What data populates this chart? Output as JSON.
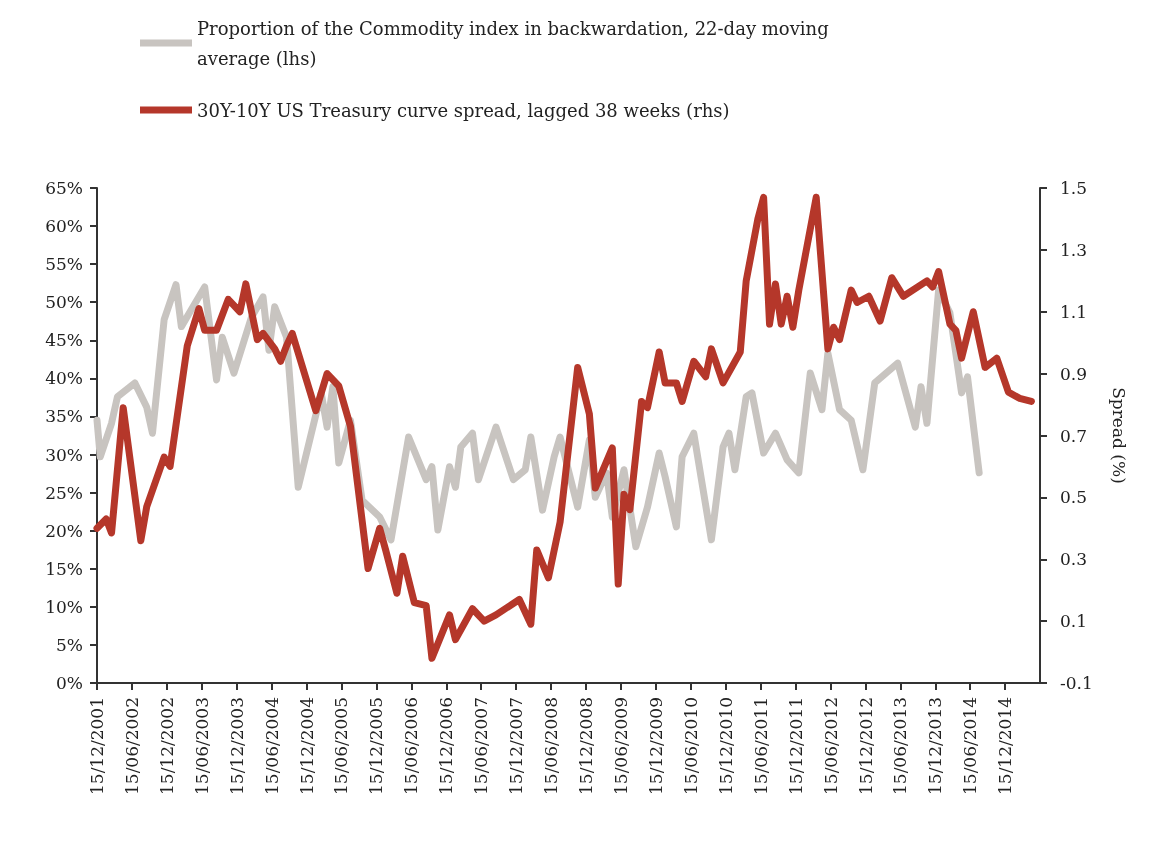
{
  "chart_data": {
    "type": "line",
    "y2label": "Spread (%)",
    "legend": "top",
    "grid": false,
    "marker": "none",
    "line_style": "solid",
    "xlim": [
      "2001-12-15",
      "2015-06-15"
    ],
    "xticks": [
      {
        "value": "2001-12-15",
        "label": "15/12/2001"
      },
      {
        "value": "2002-06-15",
        "label": "15/06/2002"
      },
      {
        "value": "2002-12-15",
        "label": "15/12/2002"
      },
      {
        "value": "2003-06-15",
        "label": "15/06/2003"
      },
      {
        "value": "2003-12-15",
        "label": "15/12/2003"
      },
      {
        "value": "2004-06-15",
        "label": "15/06/2004"
      },
      {
        "value": "2004-12-15",
        "label": "15/12/2004"
      },
      {
        "value": "2005-06-15",
        "label": "15/06/2005"
      },
      {
        "value": "2005-12-15",
        "label": "15/12/2005"
      },
      {
        "value": "2006-06-15",
        "label": "15/06/2006"
      },
      {
        "value": "2006-12-15",
        "label": "15/12/2006"
      },
      {
        "value": "2007-06-15",
        "label": "15/06/2007"
      },
      {
        "value": "2007-12-15",
        "label": "15/12/2007"
      },
      {
        "value": "2008-06-15",
        "label": "15/06/2008"
      },
      {
        "value": "2008-12-15",
        "label": "15/12/2008"
      },
      {
        "value": "2009-06-15",
        "label": "15/06/2009"
      },
      {
        "value": "2009-12-15",
        "label": "15/12/2009"
      },
      {
        "value": "2010-06-15",
        "label": "15/06/2010"
      },
      {
        "value": "2010-12-15",
        "label": "15/12/2010"
      },
      {
        "value": "2011-06-15",
        "label": "15/06/2011"
      },
      {
        "value": "2011-12-15",
        "label": "15/12/2011"
      },
      {
        "value": "2012-06-15",
        "label": "15/06/2012"
      },
      {
        "value": "2012-12-15",
        "label": "15/12/2012"
      },
      {
        "value": "2013-06-15",
        "label": "15/06/2013"
      },
      {
        "value": "2013-12-15",
        "label": "15/12/2013"
      },
      {
        "value": "2014-06-15",
        "label": "15/06/2014"
      },
      {
        "value": "2014-12-15",
        "label": "15/12/2014"
      }
    ],
    "ylim": [
      0,
      65
    ],
    "yticks": [
      {
        "value": 0,
        "label": "0%"
      },
      {
        "value": 5,
        "label": "5%"
      },
      {
        "value": 10,
        "label": "10%"
      },
      {
        "value": 15,
        "label": "15%"
      },
      {
        "value": 20,
        "label": "20%"
      },
      {
        "value": 25,
        "label": "25%"
      },
      {
        "value": 30,
        "label": "30%"
      },
      {
        "value": 35,
        "label": "35%"
      },
      {
        "value": 40,
        "label": "40%"
      },
      {
        "value": 45,
        "label": "45%"
      },
      {
        "value": 50,
        "label": "50%"
      },
      {
        "value": 55,
        "label": "55%"
      },
      {
        "value": 60,
        "label": "60%"
      },
      {
        "value": 65,
        "label": "65%"
      }
    ],
    "y2lim": [
      -0.1,
      1.5
    ],
    "y2ticks": [
      -0.1,
      0.1,
      0.3,
      0.5,
      0.7,
      0.9,
      1.1,
      1.3,
      1.5
    ],
    "series": [
      {
        "name": "Proportion of the Commodity index in backwardation, 22-day moving average (lhs)",
        "color": "#c8c4c0",
        "x": [
          "2001-12-15",
          "2002-01",
          "2002-03",
          "2002-04",
          "2002-07",
          "2002-09",
          "2002-10",
          "2002-12",
          "2003-02",
          "2003-03",
          "2003-05",
          "2003-07",
          "2003-09",
          "2003-10",
          "2003-12",
          "2004-03",
          "2004-05",
          "2004-06",
          "2004-07",
          "2004-09",
          "2004-11",
          "2005-03",
          "2005-04",
          "2005-05",
          "2005-06",
          "2005-08",
          "2005-10",
          "2006-01",
          "2006-03",
          "2006-06",
          "2006-09",
          "2006-10",
          "2006-11",
          "2007-01",
          "2007-02",
          "2007-03",
          "2007-05",
          "2007-06",
          "2007-09",
          "2007-12",
          "2008-02",
          "2008-03",
          "2008-05",
          "2008-07",
          "2008-08",
          "2008-11",
          "2009-01",
          "2009-02",
          "2009-04",
          "2009-05",
          "2009-07",
          "2009-09",
          "2009-11",
          "2010-01",
          "2010-02",
          "2010-04",
          "2010-05",
          "2010-07",
          "2010-10",
          "2010-12",
          "2011-01",
          "2011-02",
          "2011-04",
          "2011-05",
          "2011-07",
          "2011-09",
          "2011-11",
          "2012-01",
          "2012-03",
          "2012-05",
          "2012-06",
          "2012-08",
          "2012-10",
          "2012-12",
          "2013-02",
          "2013-06",
          "2013-09",
          "2013-10",
          "2013-11",
          "2014-01",
          "2014-03",
          "2014-05",
          "2014-06",
          "2014-08"
        ],
        "values": [
          34.5,
          29.7,
          34.1,
          37.6,
          39.4,
          36.2,
          32.8,
          47.7,
          52.3,
          46.8,
          49.4,
          52.0,
          39.8,
          45.4,
          40.7,
          48.0,
          50.7,
          43.7,
          49.4,
          45.4,
          25.7,
          38.1,
          33.6,
          38.9,
          28.9,
          34.5,
          24.0,
          21.8,
          18.8,
          32.3,
          26.7,
          28.4,
          20.1,
          28.4,
          25.7,
          31.0,
          32.8,
          26.7,
          33.6,
          26.7,
          28.0,
          32.3,
          22.7,
          29.7,
          32.3,
          23.1,
          31.9,
          24.4,
          27.6,
          21.8,
          28.0,
          17.9,
          23.1,
          30.2,
          27.1,
          20.5,
          29.7,
          32.8,
          18.8,
          31.0,
          32.8,
          28.0,
          37.6,
          38.1,
          30.2,
          32.8,
          29.3,
          27.6,
          40.7,
          35.9,
          43.3,
          35.9,
          34.5,
          28.0,
          39.4,
          42.0,
          33.6,
          38.9,
          34.1,
          51.6,
          48.6,
          38.1,
          40.2,
          27.6
        ]
      },
      {
        "name": "30Y-10Y US Treasury curve spread, lagged 38 weeks (rhs)",
        "color": "#b5372a",
        "axis": "y2",
        "x": [
          "2001-12-15",
          "2002-02",
          "2002-03",
          "2002-05",
          "2002-08",
          "2002-09",
          "2002-12",
          "2003-01",
          "2003-04",
          "2003-06",
          "2003-07",
          "2003-09",
          "2003-11",
          "2004-01",
          "2004-02",
          "2004-04",
          "2004-05",
          "2004-07",
          "2004-08",
          "2004-09",
          "2004-10",
          "2005-02",
          "2005-04",
          "2005-06",
          "2005-08",
          "2005-11",
          "2006-01",
          "2006-02",
          "2006-04",
          "2006-05",
          "2006-07",
          "2006-09",
          "2006-10",
          "2007-01",
          "2007-02",
          "2007-05",
          "2007-07",
          "2007-09",
          "2008-01",
          "2008-03",
          "2008-04",
          "2008-06",
          "2008-08",
          "2008-11",
          "2009-01",
          "2009-02",
          "2009-05",
          "2009-06",
          "2009-07",
          "2009-08",
          "2009-10",
          "2009-11",
          "2010-01",
          "2010-02",
          "2010-04",
          "2010-05",
          "2010-07",
          "2010-09",
          "2010-10",
          "2010-12",
          "2011-03",
          "2011-04",
          "2011-06",
          "2011-07",
          "2011-08",
          "2011-09",
          "2011-10",
          "2011-11",
          "2011-12",
          "2012-01",
          "2012-04",
          "2012-06",
          "2012-07",
          "2012-08",
          "2012-10",
          "2012-11",
          "2013-01",
          "2013-03",
          "2013-05",
          "2013-07",
          "2013-11",
          "2013-12",
          "2014-01",
          "2014-03",
          "2014-04",
          "2014-05",
          "2014-07",
          "2014-09",
          "2014-11",
          "2015-01",
          "2015-03",
          "2015-05"
        ],
        "values": [
          0.4,
          0.43,
          0.385,
          0.79,
          0.36,
          0.47,
          0.63,
          0.6,
          0.99,
          1.11,
          1.04,
          1.04,
          1.14,
          1.1,
          1.19,
          1.01,
          1.03,
          0.98,
          0.94,
          0.99,
          1.03,
          0.78,
          0.9,
          0.86,
          0.73,
          0.27,
          0.4,
          0.33,
          0.19,
          0.31,
          0.16,
          0.15,
          -0.02,
          0.12,
          0.04,
          0.14,
          0.1,
          0.12,
          0.17,
          0.09,
          0.33,
          0.24,
          0.42,
          0.92,
          0.77,
          0.53,
          0.66,
          0.22,
          0.51,
          0.46,
          0.81,
          0.79,
          0.97,
          0.87,
          0.87,
          0.81,
          0.94,
          0.89,
          0.98,
          0.87,
          0.97,
          1.2,
          1.4,
          1.47,
          1.06,
          1.19,
          1.06,
          1.15,
          1.05,
          1.17,
          1.47,
          0.98,
          1.05,
          1.01,
          1.17,
          1.13,
          1.15,
          1.07,
          1.21,
          1.15,
          1.2,
          1.18,
          1.23,
          1.06,
          1.04,
          0.95,
          1.1,
          0.92,
          0.95,
          0.84,
          0.82,
          0.81
        ]
      }
    ]
  }
}
